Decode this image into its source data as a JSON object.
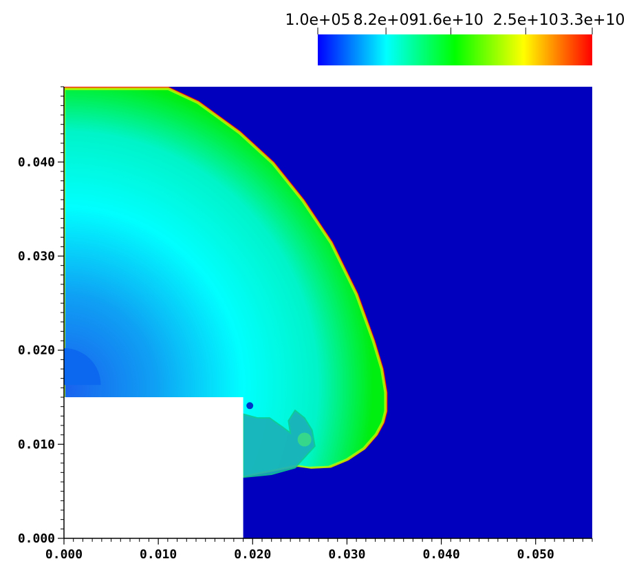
{
  "chart_data": {
    "type": "heatmap",
    "title": "",
    "xlabel": "",
    "ylabel": "",
    "xlim": [
      0.0,
      0.056
    ],
    "ylim": [
      0.0,
      0.048
    ],
    "x_ticks": [
      "0.000",
      "0.010",
      "0.020",
      "0.030",
      "0.040",
      "0.050"
    ],
    "x_tick_values": [
      0.0,
      0.01,
      0.02,
      0.03,
      0.04,
      0.05
    ],
    "y_ticks": [
      "0.000",
      "0.010",
      "0.020",
      "0.030",
      "0.040"
    ],
    "y_tick_values": [
      0.0,
      0.01,
      0.02,
      0.03,
      0.04
    ],
    "colorbar": {
      "min": 100000,
      "max": 33000000000,
      "labels": [
        "1.0e+05",
        "8.2e+09",
        "1.6e+10",
        "2.5e+10",
        "3.3e+10"
      ],
      "values": [
        100000,
        8200000000,
        16000000000,
        25000000000,
        33000000000
      ],
      "colormap": [
        "#0000ff",
        "#00ffff",
        "#00ff00",
        "#ffff00",
        "#ff0000"
      ],
      "placement": "top-right"
    },
    "obstacle": {
      "x": [
        0.0,
        0.019
      ],
      "y": [
        0.0,
        0.015
      ],
      "color": "#ffffff"
    },
    "field": {
      "ambient_color": "#0000be",
      "shock_front_color": "#ff0000",
      "post_shock_color": "#00ee10",
      "interior_color": "#00ffff",
      "core_color": "#0c68ee",
      "shock_front": [
        [
          0.0,
          0.048
        ],
        [
          0.0111,
          0.048
        ],
        [
          0.0143,
          0.0465
        ],
        [
          0.0187,
          0.0433
        ],
        [
          0.0223,
          0.04
        ],
        [
          0.0255,
          0.036
        ],
        [
          0.0285,
          0.0315
        ],
        [
          0.0312,
          0.026
        ],
        [
          0.033,
          0.021
        ],
        [
          0.0339,
          0.018
        ],
        [
          0.0343,
          0.0155
        ],
        [
          0.0343,
          0.0135
        ],
        [
          0.034,
          0.0123
        ],
        [
          0.0333,
          0.011
        ],
        [
          0.032,
          0.0095
        ],
        [
          0.0302,
          0.0083
        ],
        [
          0.0283,
          0.0075
        ],
        [
          0.0262,
          0.0074
        ],
        [
          0.0248,
          0.0076
        ]
      ],
      "vortex_feature": [
        [
          0.019,
          0.0065
        ],
        [
          0.022,
          0.0068
        ],
        [
          0.0245,
          0.0075
        ],
        [
          0.0266,
          0.0098
        ],
        [
          0.0263,
          0.0115
        ],
        [
          0.0255,
          0.0128
        ],
        [
          0.0245,
          0.0136
        ],
        [
          0.0238,
          0.0125
        ],
        [
          0.024,
          0.0112
        ],
        [
          0.0232,
          0.0118
        ],
        [
          0.0218,
          0.0128
        ],
        [
          0.0205,
          0.0128
        ],
        [
          0.019,
          0.0132
        ]
      ],
      "core_center": [
        0.0,
        0.0163
      ],
      "core_radius": 0.0039
    }
  }
}
